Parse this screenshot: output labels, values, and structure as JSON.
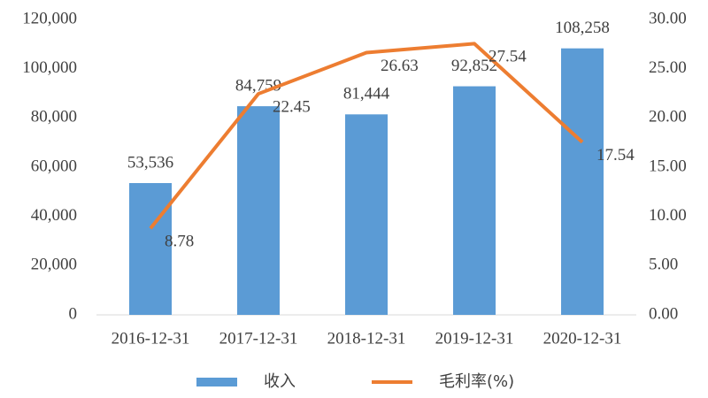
{
  "chart_data": {
    "type": "bar",
    "categories": [
      "2016-12-31",
      "2017-12-31",
      "2018-12-31",
      "2019-12-31",
      "2020-12-31"
    ],
    "series": [
      {
        "name": "收入",
        "type": "bar",
        "color": "#5b9bd5",
        "axis": "y",
        "values": [
          53536,
          84759,
          81444,
          92852,
          108258
        ],
        "value_labels": [
          "53,536",
          "84,759",
          "81,444",
          "92,852",
          "108,258"
        ]
      },
      {
        "name": "毛利率(%)",
        "type": "line",
        "color": "#ed7d31",
        "axis": "y2",
        "values": [
          8.78,
          22.45,
          26.63,
          27.54,
          17.54
        ]
      }
    ],
    "ylim": [
      0,
      120000
    ],
    "yticks": [
      0,
      {
        "value": 20000,
        "label": "20,000"
      },
      {
        "value": 40000,
        "label": "40,000"
      },
      {
        "value": 60000,
        "label": "60,000"
      },
      {
        "value": 80000,
        "label": "80,000"
      },
      {
        "value": 100000,
        "label": "100,000"
      },
      {
        "value": 120000,
        "label": "120,000"
      }
    ],
    "y2lim": [
      0,
      30
    ],
    "y2ticks": [
      {
        "value": 0,
        "label": "0.00"
      },
      {
        "value": 5,
        "label": "5.00"
      },
      {
        "value": 10,
        "label": "10.00"
      },
      {
        "value": 15,
        "label": "15.00"
      },
      {
        "value": 20,
        "label": "20.00"
      },
      {
        "value": 25,
        "label": "25.00"
      },
      {
        "value": 30,
        "label": "30.00"
      }
    ],
    "grid": false,
    "legend": "bottom"
  }
}
